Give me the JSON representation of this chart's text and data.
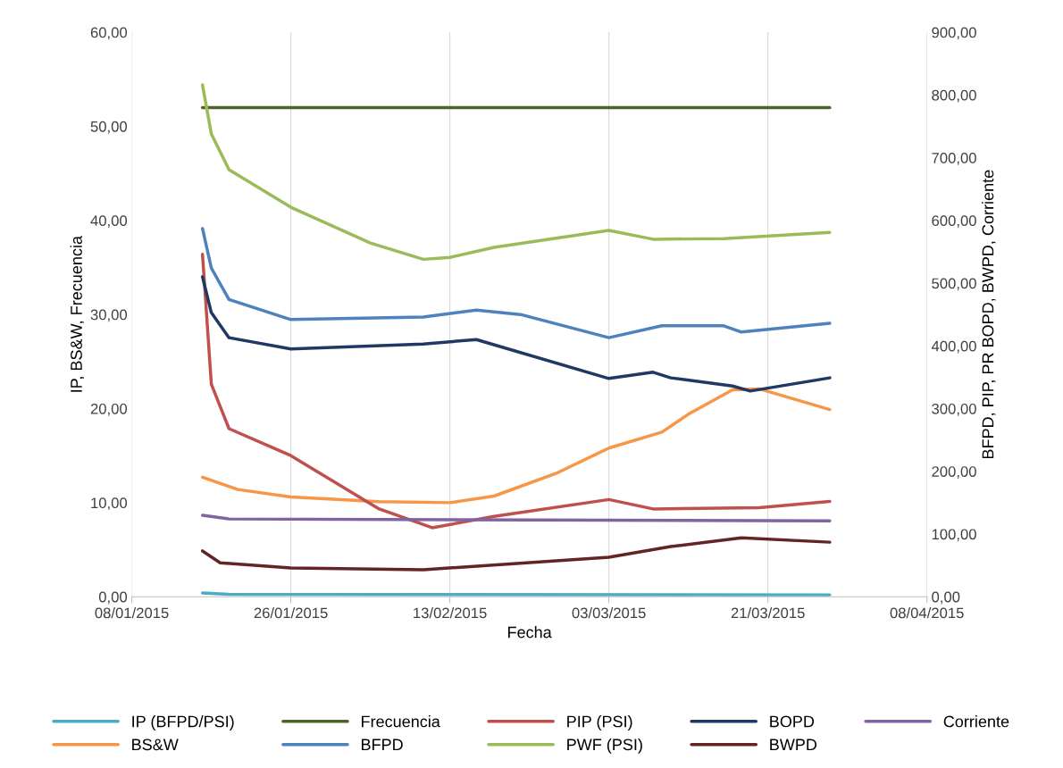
{
  "chart_data": {
    "type": "line",
    "xlabel": "Fecha",
    "ylabel": "IP, BS&W, Frecuencia",
    "y2label": "BFPD, PIP, PR BOPD, BWPD, Corriente",
    "xlim": [
      "2015-01-08",
      "2015-04-08"
    ],
    "xticks": [
      {
        "value": "2015-01-08",
        "label": "08/01/2015"
      },
      {
        "value": "2015-01-26",
        "label": "26/01/2015"
      },
      {
        "value": "2015-02-13",
        "label": "13/02/2015"
      },
      {
        "value": "2015-03-03",
        "label": "03/03/2015"
      },
      {
        "value": "2015-03-21",
        "label": "21/03/2015"
      },
      {
        "value": "2015-04-08",
        "label": "08/04/2015"
      }
    ],
    "ylim": [
      0,
      60
    ],
    "yticks": [
      {
        "value": 0,
        "label": "0,00"
      },
      {
        "value": 10,
        "label": "10,00"
      },
      {
        "value": 20,
        "label": "20,00"
      },
      {
        "value": 30,
        "label": "30,00"
      },
      {
        "value": 40,
        "label": "40,00"
      },
      {
        "value": 50,
        "label": "50,00"
      },
      {
        "value": 60,
        "label": "60,00"
      }
    ],
    "y2lim": [
      0,
      900
    ],
    "y2ticks": [
      {
        "value": 0,
        "label": "0,00"
      },
      {
        "value": 100,
        "label": "100,00"
      },
      {
        "value": 200,
        "label": "200,00"
      },
      {
        "value": 300,
        "label": "300,00"
      },
      {
        "value": 400,
        "label": "400,00"
      },
      {
        "value": 500,
        "label": "500,00"
      },
      {
        "value": 600,
        "label": "600,00"
      },
      {
        "value": 700,
        "label": "700,00"
      },
      {
        "value": 800,
        "label": "800,00"
      },
      {
        "value": 900,
        "label": "900,00"
      }
    ],
    "grid": "x",
    "legend": "bottom",
    "marker": "none",
    "line_style": "solid",
    "series": [
      {
        "name": "IP (BFPD/PSI)",
        "color": "#4bacc6",
        "x": [
          "2015-01-16",
          "2015-01-19",
          "2015-03-28"
        ],
        "values": [
          0.4,
          0.25,
          0.2
        ]
      },
      {
        "name": "BS&W",
        "color": "#f79646",
        "x": [
          "2015-01-16",
          "2015-01-20",
          "2015-01-26",
          "2015-02-05",
          "2015-02-13",
          "2015-02-18",
          "2015-02-25",
          "2015-03-03",
          "2015-03-09",
          "2015-03-12",
          "2015-03-17",
          "2015-03-20",
          "2015-03-28"
        ],
        "values": [
          12.7,
          11.4,
          10.6,
          10.1,
          10.0,
          10.7,
          13.1,
          15.8,
          17.5,
          19.4,
          22.0,
          22.1,
          19.9
        ]
      },
      {
        "name": "Frecuencia",
        "color": "#4f6228",
        "x": [
          "2015-01-16",
          "2015-03-28"
        ],
        "values": [
          52,
          52
        ]
      },
      {
        "name": "BFPD",
        "color": "#4f81bd",
        "axis": "y2",
        "x": [
          "2015-01-16",
          "2015-01-17",
          "2015-01-19",
          "2015-01-26",
          "2015-02-10",
          "2015-02-16",
          "2015-02-21",
          "2015-03-03",
          "2015-03-09",
          "2015-03-16",
          "2015-03-18",
          "2015-03-28"
        ],
        "values": [
          587,
          524,
          474,
          442,
          446,
          457,
          450,
          413,
          432,
          432,
          422,
          436
        ]
      },
      {
        "name": "PIP (PSI)",
        "color": "#c0504d",
        "axis": "y2",
        "x": [
          "2015-01-16",
          "2015-01-17",
          "2015-01-19",
          "2015-01-26",
          "2015-02-05",
          "2015-02-11",
          "2015-02-18",
          "2015-03-03",
          "2015-03-08",
          "2015-03-20",
          "2015-03-28"
        ],
        "values": [
          546,
          339,
          268,
          225,
          140,
          110,
          128,
          155,
          140,
          142,
          152
        ]
      },
      {
        "name": "PWF (PSI)",
        "color": "#9bbb59",
        "axis": "y2",
        "x": [
          "2015-01-16",
          "2015-01-17",
          "2015-01-19",
          "2015-01-26",
          "2015-02-04",
          "2015-02-10",
          "2015-02-13",
          "2015-02-18",
          "2015-03-03",
          "2015-03-08",
          "2015-03-16",
          "2015-03-28"
        ],
        "values": [
          816,
          738,
          681,
          621,
          564,
          538,
          541,
          557,
          584,
          570,
          571,
          581
        ]
      },
      {
        "name": "BOPD",
        "color": "#1f3864",
        "axis": "y2",
        "x": [
          "2015-01-16",
          "2015-01-17",
          "2015-01-19",
          "2015-01-26",
          "2015-02-10",
          "2015-02-16",
          "2015-03-03",
          "2015-03-08",
          "2015-03-10",
          "2015-03-17",
          "2015-03-19",
          "2015-03-28"
        ],
        "values": [
          510,
          453,
          413,
          395,
          403,
          410,
          348,
          358,
          349,
          336,
          328,
          349
        ]
      },
      {
        "name": "BWPD",
        "color": "#632523",
        "axis": "y2",
        "x": [
          "2015-01-16",
          "2015-01-18",
          "2015-01-26",
          "2015-02-10",
          "2015-03-03",
          "2015-03-10",
          "2015-03-18",
          "2015-03-28"
        ],
        "values": [
          73,
          54,
          46,
          43,
          63,
          80,
          94,
          87
        ]
      },
      {
        "name": "Corriente",
        "color": "#8064a2",
        "axis": "y2",
        "x": [
          "2015-01-16",
          "2015-01-19",
          "2015-03-28"
        ],
        "values": [
          130,
          124,
          121
        ]
      }
    ]
  }
}
